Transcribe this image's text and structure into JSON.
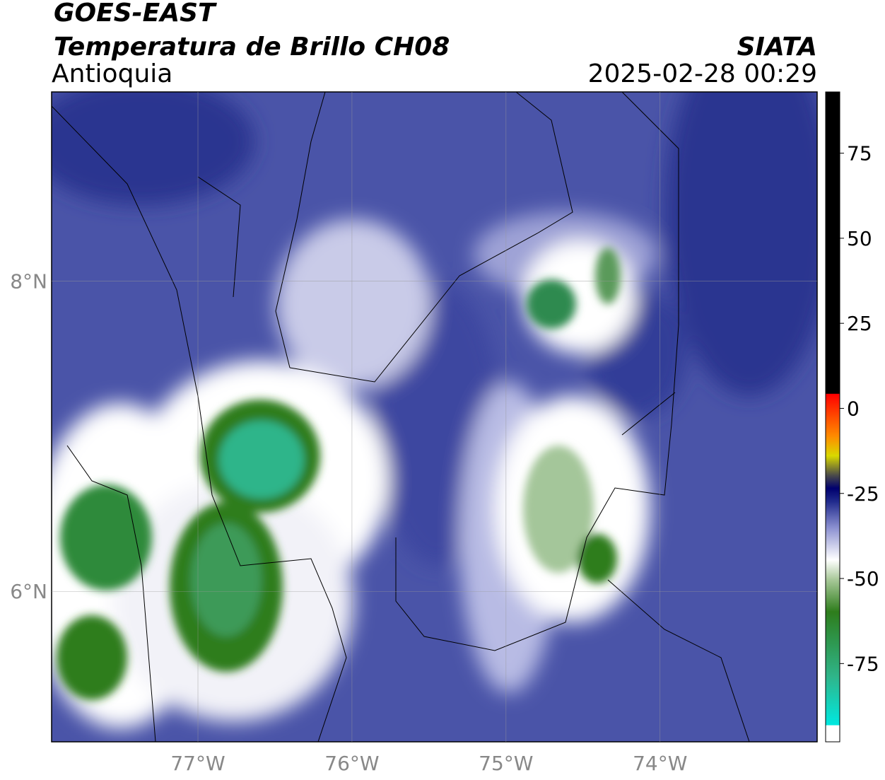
{
  "header": {
    "title": "GOES-EAST",
    "subtitle": "Temperatura de Brillo CH08",
    "region": "Antioquia",
    "source": "SIATA",
    "timestamp": "2025-02-28 00:29"
  },
  "map": {
    "xlim": [
      -77.95,
      -72.98
    ],
    "ylim": [
      5.03,
      9.22
    ],
    "xticks": [
      {
        "value": -77,
        "label": "77°W"
      },
      {
        "value": -76,
        "label": "76°W"
      },
      {
        "value": -75,
        "label": "75°W"
      },
      {
        "value": -74,
        "label": "74°W"
      }
    ],
    "yticks": [
      {
        "value": 8,
        "label": "8°N"
      },
      {
        "value": 6,
        "label": "6°N"
      }
    ],
    "grid": true
  },
  "colorbar": {
    "lim": [
      -98,
      93
    ],
    "ticks": [
      75,
      50,
      25,
      0,
      -25,
      -50,
      -75
    ]
  }
}
